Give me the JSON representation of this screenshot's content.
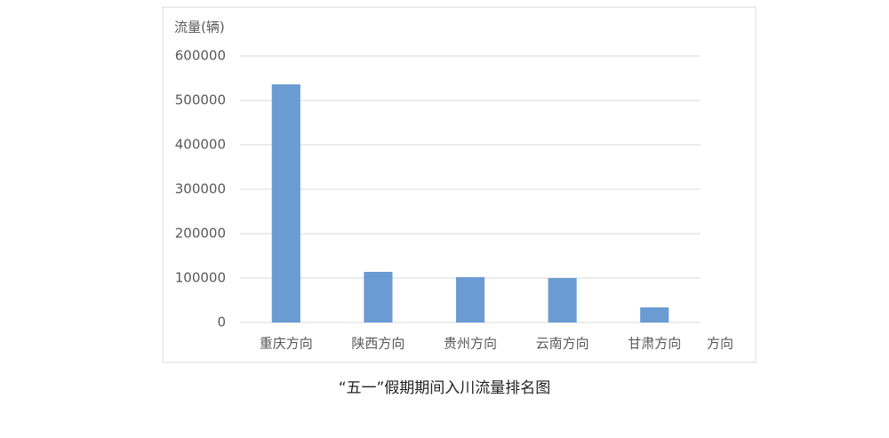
{
  "chart_data": {
    "type": "bar",
    "title": "“五一”假期期间入川流量排名图",
    "y_label": "流量(辆)",
    "annotation": "方向",
    "categories": [
      "重庆方向",
      "陕西方向",
      "贵州方向",
      "云南方向",
      "甘肃方向"
    ],
    "values": [
      536000,
      114000,
      102000,
      100000,
      34000
    ],
    "color": "#6a9bd2",
    "ylim": [
      0,
      600000
    ],
    "yticks": [
      0,
      100000,
      200000,
      300000,
      400000,
      500000,
      600000
    ],
    "grid": true
  }
}
